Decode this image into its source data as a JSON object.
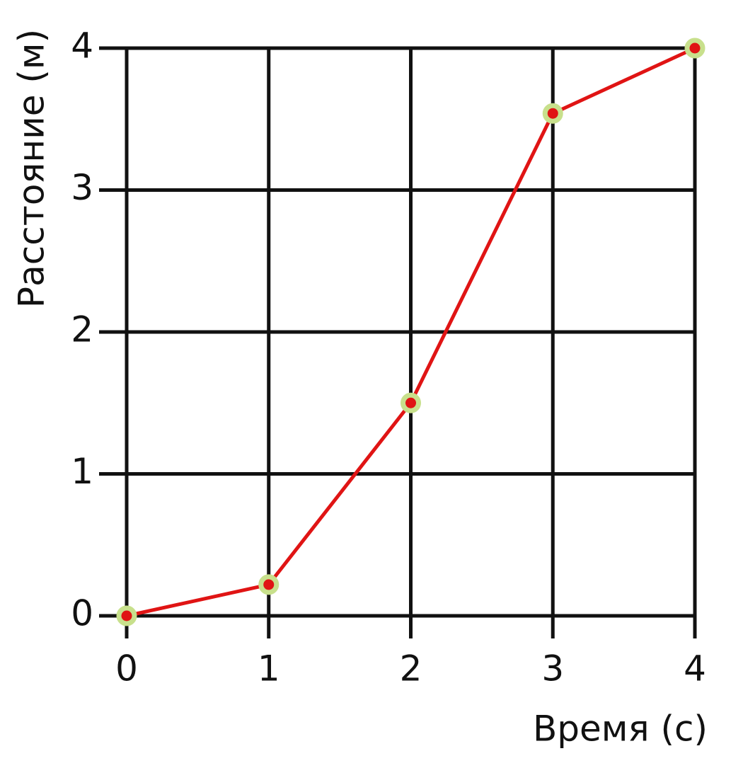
{
  "chart_data": {
    "type": "line",
    "x": [
      0,
      1,
      2,
      3,
      4
    ],
    "values": [
      0,
      0.22,
      1.5,
      3.54,
      4
    ],
    "color": "#e01414",
    "marker_edge_color": "#c8e08c",
    "xlabel": "Время (с)",
    "ylabel": "Расстояние (м)",
    "xlim": [
      0,
      4
    ],
    "ylim": [
      0,
      4
    ],
    "xticks": [
      0,
      1,
      2,
      3,
      4
    ],
    "yticks": [
      0,
      1,
      2,
      3,
      4
    ],
    "grid": true
  }
}
